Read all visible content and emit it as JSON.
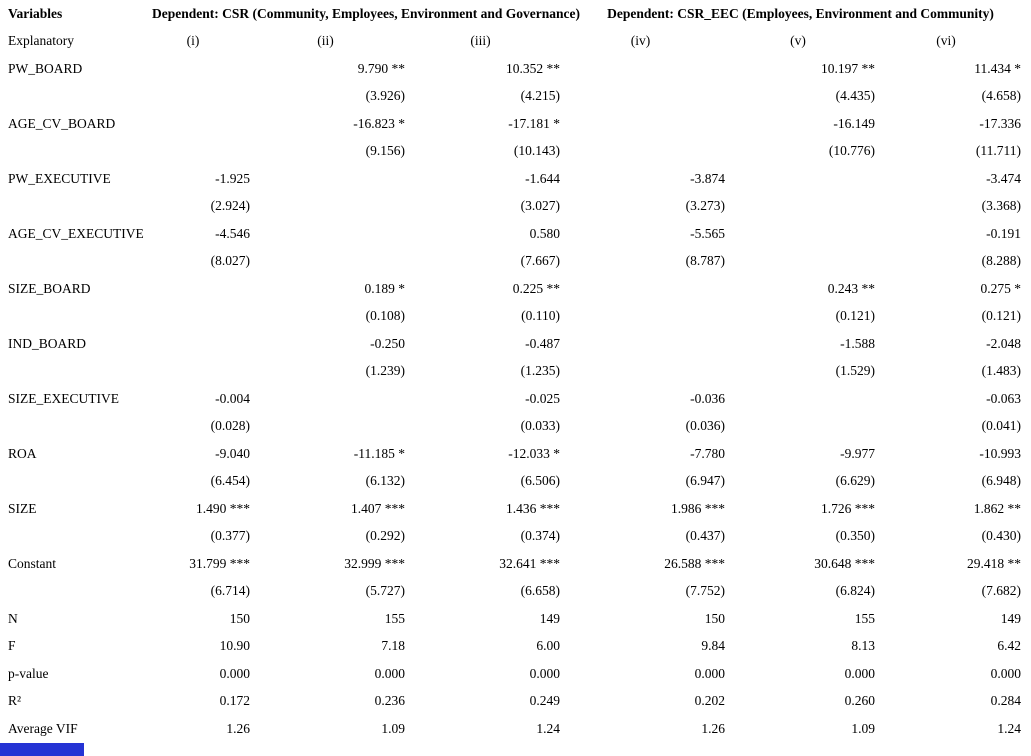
{
  "table": {
    "header": {
      "col1_row1": "Variables",
      "group1": "Dependent: CSR (Community, Employees, Environment and Governance)",
      "group2": "Dependent: CSR_EEC (Employees, Environment and Community)",
      "col1_row2": "Explanatory",
      "model_labels": [
        "(i)",
        "(ii)",
        "(iii)",
        "(iv)",
        "(v)",
        "(vi)"
      ]
    },
    "variables": [
      {
        "name": "PW_BOARD",
        "coef": [
          "",
          "9.790 **",
          "10.352 **",
          "",
          "10.197 **",
          "11.434 *"
        ],
        "se": [
          "",
          "(3.926)",
          "(4.215)",
          "",
          "(4.435)",
          "(4.658)"
        ]
      },
      {
        "name": "AGE_CV_BOARD",
        "coef": [
          "",
          "-16.823 *",
          "-17.181 *",
          "",
          "-16.149",
          "-17.336"
        ],
        "se": [
          "",
          "(9.156)",
          "(10.143)",
          "",
          "(10.776)",
          "(11.711)"
        ]
      },
      {
        "name": "PW_EXECUTIVE",
        "coef": [
          "-1.925",
          "",
          "-1.644",
          "-3.874",
          "",
          "-3.474"
        ],
        "se": [
          "(2.924)",
          "",
          "(3.027)",
          "(3.273)",
          "",
          "(3.368)"
        ]
      },
      {
        "name": "AGE_CV_EXECUTIVE",
        "coef": [
          "-4.546",
          "",
          "0.580",
          "-5.565",
          "",
          "-0.191"
        ],
        "se": [
          "(8.027)",
          "",
          "(7.667)",
          "(8.787)",
          "",
          "(8.288)"
        ]
      },
      {
        "name": "SIZE_BOARD",
        "coef": [
          "",
          "0.189 *",
          "0.225 **",
          "",
          "0.243 **",
          "0.275 *"
        ],
        "se": [
          "",
          "(0.108)",
          "(0.110)",
          "",
          "(0.121)",
          "(0.121)"
        ]
      },
      {
        "name": "IND_BOARD",
        "coef": [
          "",
          "-0.250",
          "-0.487",
          "",
          "-1.588",
          "-2.048"
        ],
        "se": [
          "",
          "(1.239)",
          "(1.235)",
          "",
          "(1.529)",
          "(1.483)"
        ]
      },
      {
        "name": "SIZE_EXECUTIVE",
        "coef": [
          "-0.004",
          "",
          "-0.025",
          "-0.036",
          "",
          "-0.063"
        ],
        "se": [
          "(0.028)",
          "",
          "(0.033)",
          "(0.036)",
          "",
          "(0.041)"
        ]
      },
      {
        "name": "ROA",
        "coef": [
          "-9.040",
          "-11.185 *",
          "-12.033 *",
          "-7.780",
          "-9.977",
          "-10.993"
        ],
        "se": [
          "(6.454)",
          "(6.132)",
          "(6.506)",
          "(6.947)",
          "(6.629)",
          "(6.948)"
        ]
      },
      {
        "name": "SIZE",
        "coef": [
          "1.490 ***",
          "1.407 ***",
          "1.436 ***",
          "1.986 ***",
          "1.726 ***",
          "1.862 **"
        ],
        "se": [
          "(0.377)",
          "(0.292)",
          "(0.374)",
          "(0.437)",
          "(0.350)",
          "(0.430)"
        ]
      },
      {
        "name": "Constant",
        "coef": [
          "31.799 ***",
          "32.999 ***",
          "32.641 ***",
          "26.588 ***",
          "30.648 ***",
          "29.418 **"
        ],
        "se": [
          "(6.714)",
          "(5.727)",
          "(6.658)",
          "(7.752)",
          "(6.824)",
          "(7.682)"
        ]
      }
    ],
    "stats": [
      {
        "name": "N",
        "values": [
          "150",
          "155",
          "149",
          "150",
          "155",
          "149"
        ]
      },
      {
        "name": "F",
        "values": [
          "10.90",
          "7.18",
          "6.00",
          "9.84",
          "8.13",
          "6.42"
        ]
      },
      {
        "name": "p-value",
        "values": [
          "0.000",
          "0.000",
          "0.000",
          "0.000",
          "0.000",
          "0.000"
        ]
      },
      {
        "name": "R²",
        "values": [
          "0.172",
          "0.236",
          "0.249",
          "0.202",
          "0.260",
          "0.284"
        ]
      },
      {
        "name": "Average VIF",
        "values": [
          "1.26",
          "1.09",
          "1.24",
          "1.26",
          "1.09",
          "1.24"
        ]
      }
    ]
  },
  "decoration": {
    "bottom_bar_color": "#2533d4"
  }
}
